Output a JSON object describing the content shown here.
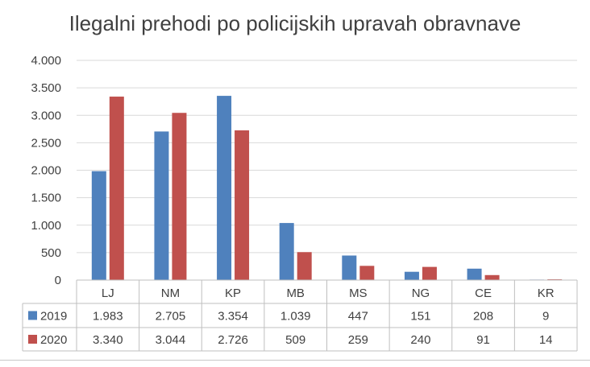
{
  "chart_data": {
    "type": "bar",
    "title": "Ilegalni prehodi po policijskih upravah obravnave",
    "categories": [
      "LJ",
      "NM",
      "KP",
      "MB",
      "MS",
      "NG",
      "CE",
      "KR"
    ],
    "series": [
      {
        "name": "2019",
        "values": [
          1983,
          2705,
          3354,
          1039,
          447,
          151,
          208,
          9
        ],
        "labels": [
          "1.983",
          "2.705",
          "3.354",
          "1.039",
          "447",
          "151",
          "208",
          "9"
        ],
        "color": "#4f81bd"
      },
      {
        "name": "2020",
        "values": [
          3340,
          3044,
          2726,
          509,
          259,
          240,
          91,
          14
        ],
        "labels": [
          "3.340",
          "3.044",
          "2.726",
          "509",
          "259",
          "240",
          "91",
          "14"
        ],
        "color": "#c0504d"
      }
    ],
    "ylim": [
      0,
      4000
    ],
    "yticks": [
      0,
      500,
      1000,
      1500,
      2000,
      2500,
      3000,
      3500,
      4000
    ],
    "ytick_labels": [
      "0",
      "500",
      "1.000",
      "1.500",
      "2.000",
      "2.500",
      "3.000",
      "3.500",
      "4.000"
    ],
    "grid": true,
    "legend": "data-table"
  }
}
